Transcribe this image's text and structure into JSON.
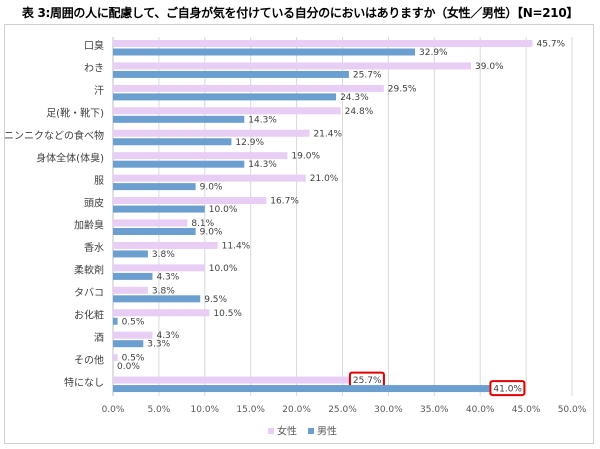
{
  "chart_data": {
    "type": "bar",
    "orientation": "horizontal",
    "title": "表 3:周囲の人に配慮して、ご自身が気を付けている自分のにおいはありますか（女性／男性）【N=210】",
    "categories": [
      "口臭",
      "わき",
      "汗",
      "足(靴・靴下)",
      "ニンニクなどの食べ物",
      "身体全体(体臭)",
      "服",
      "頭皮",
      "加齢臭",
      "香水",
      "柔軟剤",
      "タバコ",
      "お化粧",
      "酒",
      "その他",
      "特になし"
    ],
    "series": [
      {
        "name": "女性",
        "color": "#e8cdf5",
        "values": [
          45.7,
          39.0,
          29.5,
          24.8,
          21.4,
          19.0,
          21.0,
          16.7,
          8.1,
          11.4,
          10.0,
          3.8,
          10.5,
          4.3,
          0.5,
          25.7
        ]
      },
      {
        "name": "男性",
        "color": "#6a9fcf",
        "values": [
          32.9,
          25.7,
          24.3,
          14.3,
          12.9,
          14.3,
          9.0,
          10.0,
          9.0,
          3.8,
          4.3,
          9.5,
          0.5,
          3.3,
          0.0,
          41.0
        ]
      }
    ],
    "xlim": [
      0,
      50
    ],
    "xticks": [
      "0.0%",
      "5.0%",
      "10.0%",
      "15.0%",
      "20.0%",
      "25.0%",
      "30.0%",
      "35.0%",
      "40.0%",
      "45.0%",
      "50.0%"
    ],
    "grid": true,
    "legend": "bottom",
    "highlighted": [
      {
        "category": "特になし",
        "series": "女性"
      },
      {
        "category": "特になし",
        "series": "男性"
      }
    ],
    "highlight_color": "#e00000"
  }
}
